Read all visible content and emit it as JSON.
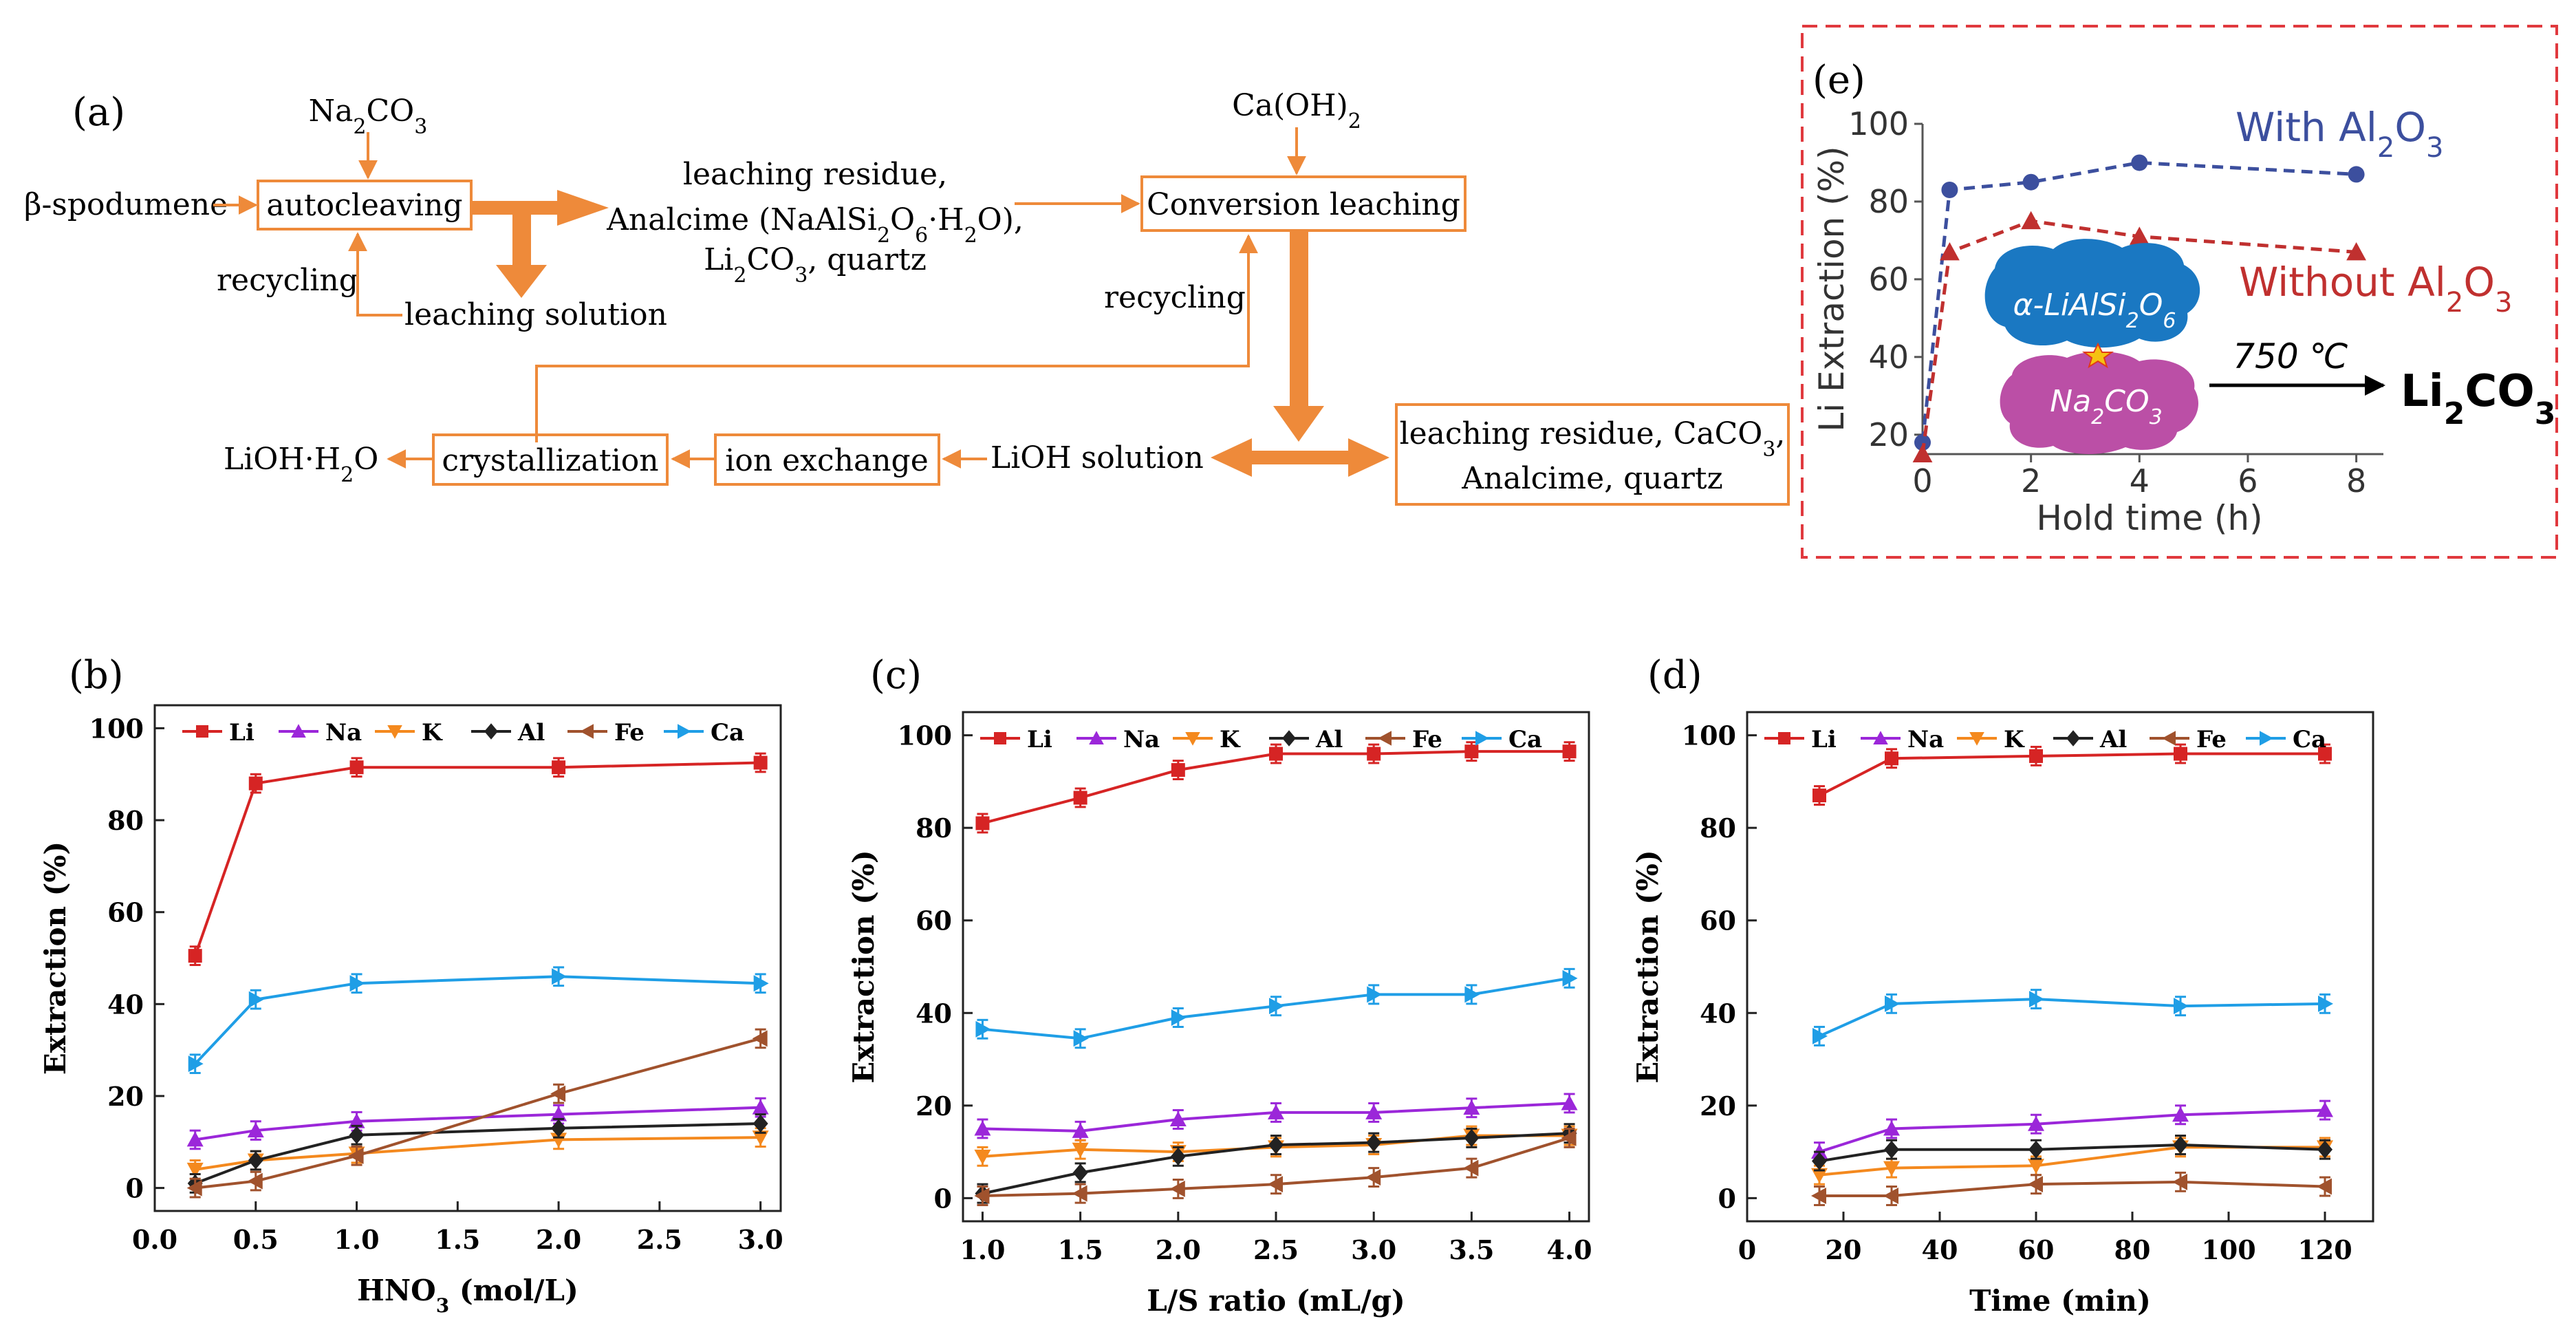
{
  "panel_a": {
    "label": "(a)",
    "na2co3": "Na2CO3",
    "spodumene": "β-spodumene",
    "autocleaving": "autocleaving",
    "recycling_left": "recycling",
    "leaching_solution": "leaching solution",
    "residue_line1": "leaching residue,",
    "residue_line2": "Analcime (NaAlSi2O6·H2O),",
    "residue_line3": "Li2CO3, quartz",
    "caoh2": "Ca(OH)2",
    "conversion": "Conversion leaching",
    "recycling_right": "recycling",
    "lioh_solution": "LiOH solution",
    "ion_exchange": "ion exchange",
    "crystallization": "crystallization",
    "product": "LiOH·H2O",
    "residue2_line1": "leaching residue, CaCO3,",
    "residue2_line2": "Analcime, quartz"
  },
  "panel_e": {
    "label": "(e)",
    "with_label": "With Al2O3",
    "without_label": "Without Al2O3",
    "mineral": "α-LiAlSi2O6",
    "reagent": "Na2CO3",
    "temperature": "750 ℃",
    "product": "Li2CO3",
    "colors": {
      "with": "#3c4f9e",
      "without": "#c0302f",
      "blob_blue": "#1a78c2",
      "blob_pink": "#bb4fa6"
    }
  },
  "colors": {
    "Li": "#d62424",
    "Na": "#9b27d9",
    "K": "#f4891e",
    "Al": "#222222",
    "Fe": "#a0522d",
    "Ca": "#1f9ee6",
    "orange": "#ee8a3a"
  },
  "chart_data": [
    {
      "id": "e",
      "type": "line",
      "title": "",
      "xlabel": "Hold time (h)",
      "ylabel": "Li Extraction (%)",
      "xlim": [
        0,
        8.5
      ],
      "ylim": [
        15,
        100
      ],
      "xticks": [
        0,
        2,
        4,
        6,
        8
      ],
      "yticks": [
        20,
        40,
        60,
        80,
        100
      ],
      "series": [
        {
          "name": "With Al2O3",
          "x": [
            0,
            0.5,
            2,
            4,
            8
          ],
          "values": [
            18,
            83,
            85,
            90,
            87
          ]
        },
        {
          "name": "Without Al2O3",
          "x": [
            0,
            0.5,
            2,
            4,
            8
          ],
          "values": [
            15,
            67,
            75,
            71,
            67
          ]
        }
      ]
    },
    {
      "id": "b",
      "label": "(b)",
      "type": "line",
      "xlabel": "HNO3 (mol/L)",
      "ylabel": "Extraction (%)",
      "xlim": [
        0,
        3.1
      ],
      "ylim": [
        -5,
        105
      ],
      "xticks": [
        "0.0",
        "0.5",
        "1.0",
        "1.5",
        "2.0",
        "2.5",
        "3.0"
      ],
      "yticks": [
        "0",
        "20",
        "40",
        "60",
        "80",
        "100"
      ],
      "legend": [
        "Li",
        "Na",
        "K",
        "Al",
        "Fe",
        "Ca"
      ],
      "x": [
        0.2,
        0.5,
        1.0,
        2.0,
        3.0
      ],
      "series": [
        {
          "name": "Li",
          "values": [
            50.5,
            88,
            91.5,
            91.5,
            92.5
          ]
        },
        {
          "name": "Na",
          "values": [
            10.5,
            12.5,
            14.5,
            16,
            17.5
          ]
        },
        {
          "name": "K",
          "values": [
            4,
            6,
            7.5,
            10.5,
            11
          ]
        },
        {
          "name": "Al",
          "values": [
            1,
            6,
            11.5,
            13,
            14
          ]
        },
        {
          "name": "Fe",
          "values": [
            0,
            1.5,
            7,
            20.5,
            32.5
          ]
        },
        {
          "name": "Ca",
          "values": [
            27,
            41,
            44.5,
            46,
            44.5
          ]
        }
      ]
    },
    {
      "id": "c",
      "label": "(c)",
      "type": "line",
      "xlabel": "L/S ratio (mL/g)",
      "ylabel": "Extraction (%)",
      "xlim": [
        0.9,
        4.1
      ],
      "ylim": [
        -5,
        105
      ],
      "xticks": [
        "1.0",
        "1.5",
        "2.0",
        "2.5",
        "3.0",
        "3.5",
        "4.0"
      ],
      "yticks": [
        "0",
        "20",
        "40",
        "60",
        "80",
        "100"
      ],
      "legend": [
        "Li",
        "Na",
        "K",
        "Al",
        "Fe",
        "Ca"
      ],
      "x": [
        1.0,
        1.5,
        2.0,
        2.5,
        3.0,
        3.5,
        4.0
      ],
      "series": [
        {
          "name": "Li",
          "values": [
            81,
            86.5,
            92.5,
            96,
            96,
            96.5,
            96.5
          ]
        },
        {
          "name": "Na",
          "values": [
            15,
            14.5,
            17,
            18.5,
            18.5,
            19.5,
            20.5
          ]
        },
        {
          "name": "K",
          "values": [
            9,
            10.5,
            10,
            11,
            11.5,
            13.5,
            13.5
          ]
        },
        {
          "name": "Al",
          "values": [
            1,
            5.5,
            9,
            11.5,
            12,
            13,
            14
          ]
        },
        {
          "name": "Fe",
          "values": [
            0.5,
            1,
            2,
            3,
            4.5,
            6.5,
            13
          ]
        },
        {
          "name": "Ca",
          "values": [
            36.5,
            34.5,
            39,
            41.5,
            44,
            44,
            47.5
          ]
        }
      ]
    },
    {
      "id": "d",
      "label": "(d)",
      "type": "line",
      "xlabel": "Time (min)",
      "ylabel": "Extraction (%)",
      "xlim": [
        0,
        130
      ],
      "ylim": [
        -5,
        105
      ],
      "xticks": [
        "0",
        "20",
        "40",
        "60",
        "80",
        "100",
        "120"
      ],
      "yticks": [
        "0",
        "20",
        "40",
        "60",
        "80",
        "100"
      ],
      "legend": [
        "Li",
        "Na",
        "K",
        "Al",
        "Fe",
        "Ca"
      ],
      "x": [
        15,
        30,
        60,
        90,
        120
      ],
      "series": [
        {
          "name": "Li",
          "values": [
            87,
            95,
            95.5,
            96,
            96
          ]
        },
        {
          "name": "Na",
          "values": [
            10,
            15,
            16,
            18,
            19
          ]
        },
        {
          "name": "K",
          "values": [
            5,
            6.5,
            7,
            11,
            11
          ]
        },
        {
          "name": "Al",
          "values": [
            8,
            10.5,
            10.5,
            11.5,
            10.5
          ]
        },
        {
          "name": "Fe",
          "values": [
            0.5,
            0.5,
            3,
            3.5,
            2.5
          ]
        },
        {
          "name": "Ca",
          "values": [
            35,
            42,
            43,
            41.5,
            42
          ]
        }
      ]
    }
  ]
}
